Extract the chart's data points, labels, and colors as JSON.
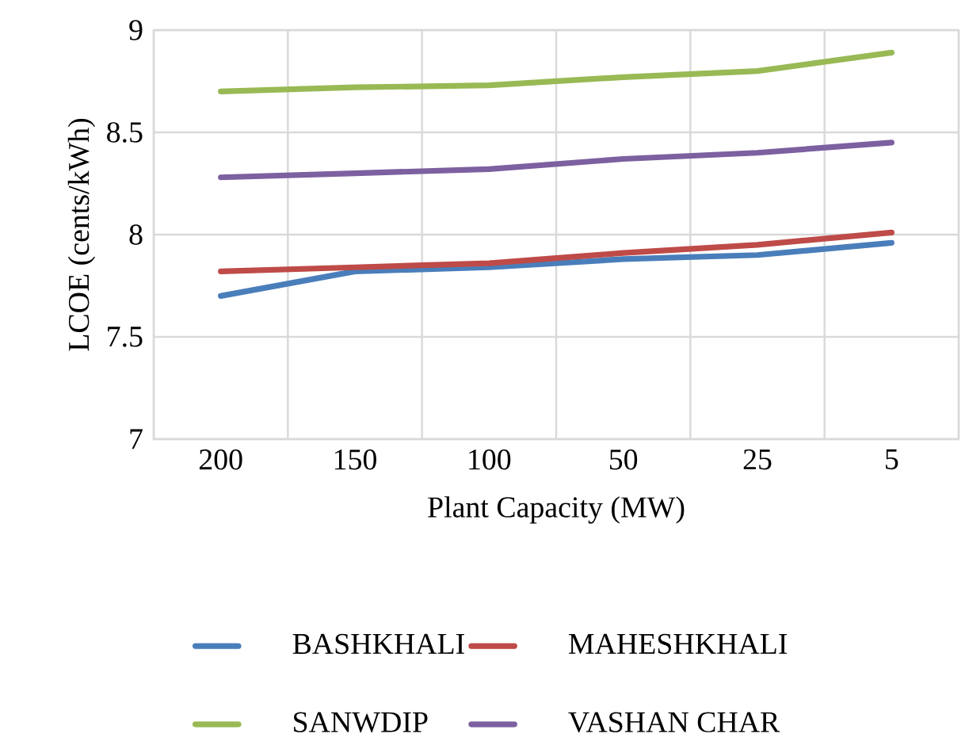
{
  "chart_data": {
    "type": "line",
    "xlabel": "Plant Capacity (MW)",
    "ylabel": "LCOE (cents/kWh)",
    "categories": [
      "200",
      "150",
      "100",
      "50",
      "25",
      "5"
    ],
    "series": [
      {
        "name": "BASHKHALI",
        "color": "#4a7ebb",
        "values": [
          7.7,
          7.82,
          7.84,
          7.88,
          7.9,
          7.96
        ]
      },
      {
        "name": "MAHESHKHALI",
        "color": "#be4b48",
        "values": [
          7.82,
          7.84,
          7.86,
          7.91,
          7.95,
          8.01
        ]
      },
      {
        "name": "SANWDIP",
        "color": "#98b954",
        "values": [
          8.7,
          8.72,
          8.73,
          8.77,
          8.8,
          8.89
        ]
      },
      {
        "name": "VASHAN CHAR",
        "color": "#7d60a0",
        "values": [
          8.28,
          8.3,
          8.32,
          8.37,
          8.4,
          8.45
        ]
      }
    ],
    "ylim": [
      7,
      9
    ],
    "yticks": [
      7,
      7.5,
      8,
      8.5,
      9
    ],
    "grid": true,
    "legend": "bottom",
    "marker": "none",
    "line_style": "solid"
  }
}
